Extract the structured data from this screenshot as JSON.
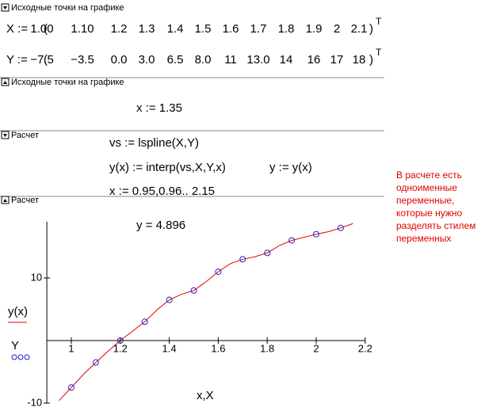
{
  "sections": [
    {
      "label": "Исходные точки на графике"
    },
    {
      "label": "Исходные точки на графике"
    },
    {
      "label": "Расчет"
    },
    {
      "label": "Расчет"
    }
  ],
  "vectors": [
    {
      "lhs": "X :=",
      "open": "(",
      "values": [
        "1.00",
        "1.10",
        "1.2",
        "1.3",
        "1.4",
        "1.5",
        "1.6",
        "1.7",
        "1.8",
        "1.9",
        "2",
        "2.1"
      ],
      "close": ")",
      "sup": "T"
    },
    {
      "lhs": "Y :=",
      "open": "(",
      "values": [
        "−7.5",
        "−3.5",
        "0.0",
        "3.0",
        "6.5",
        "8.0",
        "11",
        "13.0",
        "14",
        "16",
        "17",
        "18"
      ],
      "close": ")",
      "sup": "T"
    }
  ],
  "expressions": [
    "x := 1.35",
    "vs := lspline(X,Y)",
    "y(x) := interp(vs,X,Y,x)",
    "y := y(x)",
    "x := 0.95,0.96.. 2.15"
  ],
  "note": [
    "В расчете есть",
    "одноименные",
    "переменные,",
    "которые нужно",
    "разделять стилем",
    "переменных"
  ],
  "chart_data": {
    "type": "line",
    "annotation": "y = 4.896",
    "x_label": "x,X",
    "xlim": [
      0.9,
      2.2
    ],
    "ylim": [
      -10,
      19
    ],
    "xticks": [
      1,
      1.2,
      1.4,
      1.6,
      1.8,
      2,
      2.2
    ],
    "yticks": [
      10,
      -10
    ],
    "series": [
      {
        "name": "y(x)",
        "color": "#e00000",
        "type": "line",
        "x": [
          0.95,
          1.0,
          1.05,
          1.1,
          1.15,
          1.2,
          1.25,
          1.3,
          1.35,
          1.4,
          1.45,
          1.5,
          1.55,
          1.6,
          1.65,
          1.7,
          1.75,
          1.8,
          1.85,
          1.9,
          1.95,
          2.0,
          2.05,
          2.1,
          2.15
        ],
        "values": [
          -9.6,
          -7.5,
          -5.4,
          -3.5,
          -1.7,
          0,
          1.5,
          3,
          4.9,
          6.5,
          7.4,
          8,
          9.4,
          11,
          12.3,
          13,
          13.4,
          14,
          15.2,
          16,
          16.5,
          17,
          17.4,
          18,
          18.7
        ]
      },
      {
        "name": "Y",
        "color": "#2020d0",
        "type": "scatter",
        "x": [
          1.0,
          1.1,
          1.2,
          1.3,
          1.4,
          1.5,
          1.6,
          1.7,
          1.8,
          1.9,
          2.0,
          2.1
        ],
        "values": [
          -7.5,
          -3.5,
          0,
          3,
          6.5,
          8,
          11,
          13,
          14,
          16,
          17,
          18
        ]
      }
    ]
  }
}
